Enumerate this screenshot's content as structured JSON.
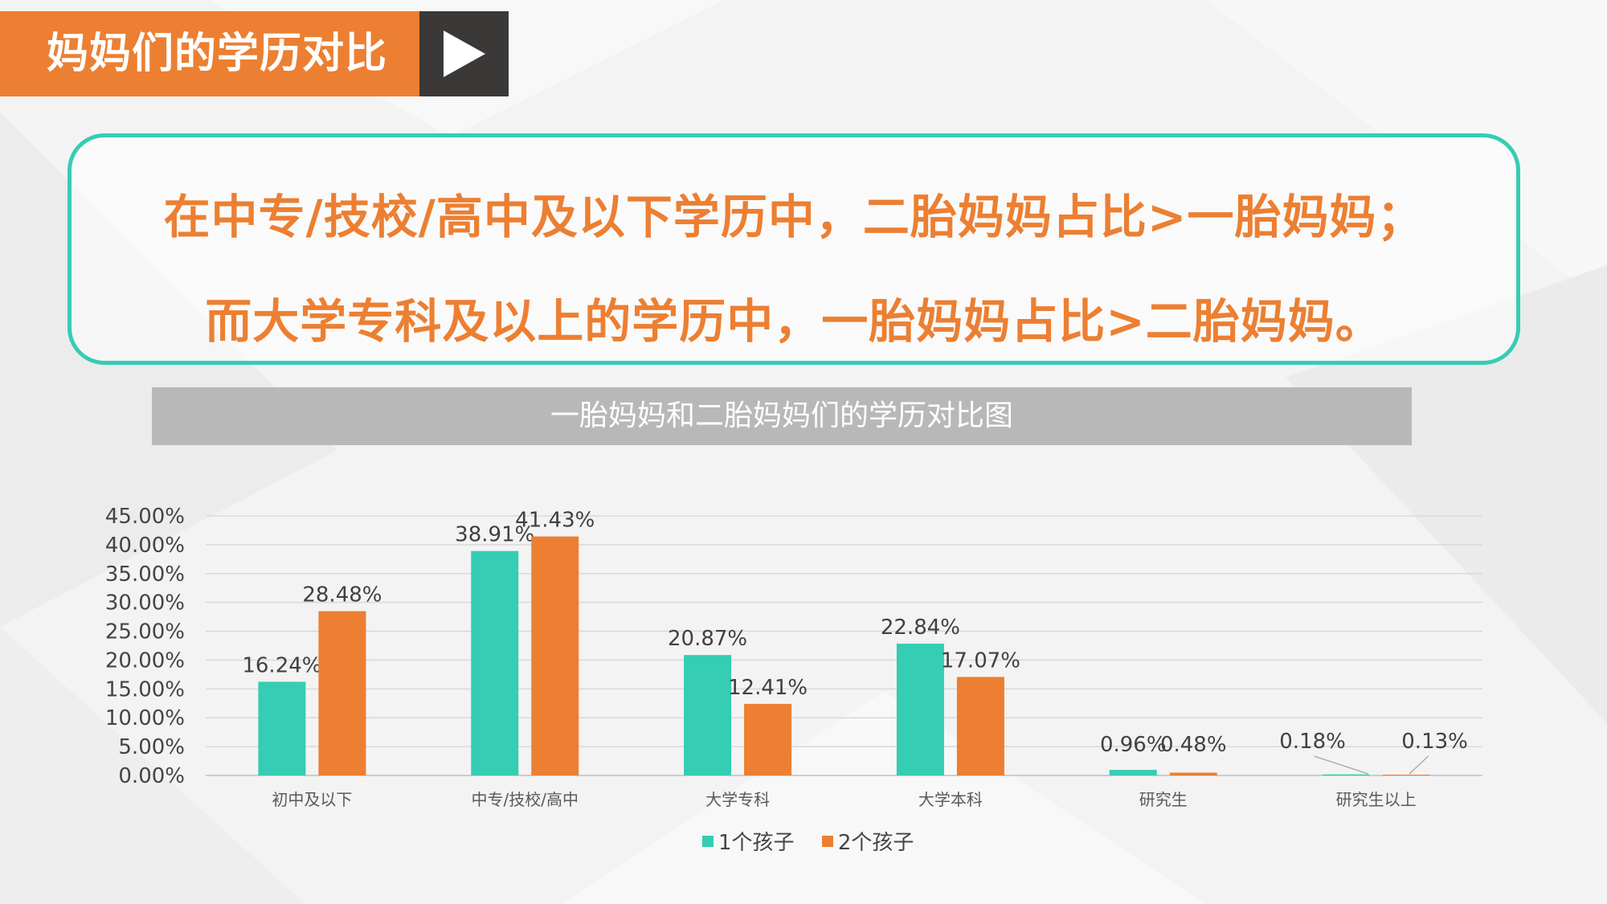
{
  "header": {
    "title": "妈妈们的学历对比"
  },
  "callout": {
    "line1": "在中专/技校/高中及以下学历中，二胎妈妈占比>一胎妈妈；",
    "line2": "而大学专科及以上的学历中，一胎妈妈占比>二胎妈妈。"
  },
  "icons": {
    "play": "play-icon"
  },
  "colors": {
    "accent": "#ec7f32",
    "teal": "#35cdb3",
    "dark": "#3b3838"
  },
  "chart_data": {
    "type": "bar",
    "title": "一胎妈妈和二胎妈妈们的学历对比图",
    "categories": [
      "初中及以下",
      "中专/技校/高中",
      "大学专科",
      "大学本科",
      "研究生",
      "研究生以上"
    ],
    "series": [
      {
        "name": "1个孩子",
        "color": "#35cdb3",
        "values": [
          16.24,
          38.91,
          20.87,
          22.84,
          0.96,
          0.18
        ],
        "labels": [
          "16.24%",
          "38.91%",
          "20.87%",
          "22.84%",
          "0.96%",
          "0.18%"
        ]
      },
      {
        "name": "2个孩子",
        "color": "#ec7f32",
        "values": [
          28.48,
          41.43,
          12.41,
          17.07,
          0.48,
          0.13
        ],
        "labels": [
          "28.48%",
          "41.43%",
          "12.41%",
          "17.07%",
          "0.48%",
          "0.13%"
        ]
      }
    ],
    "yticks": [
      "0.00%",
      "5.00%",
      "10.00%",
      "15.00%",
      "20.00%",
      "25.00%",
      "30.00%",
      "35.00%",
      "40.00%",
      "45.00%"
    ],
    "ylim": [
      0,
      45
    ],
    "grid": true,
    "legend": "bottom"
  }
}
